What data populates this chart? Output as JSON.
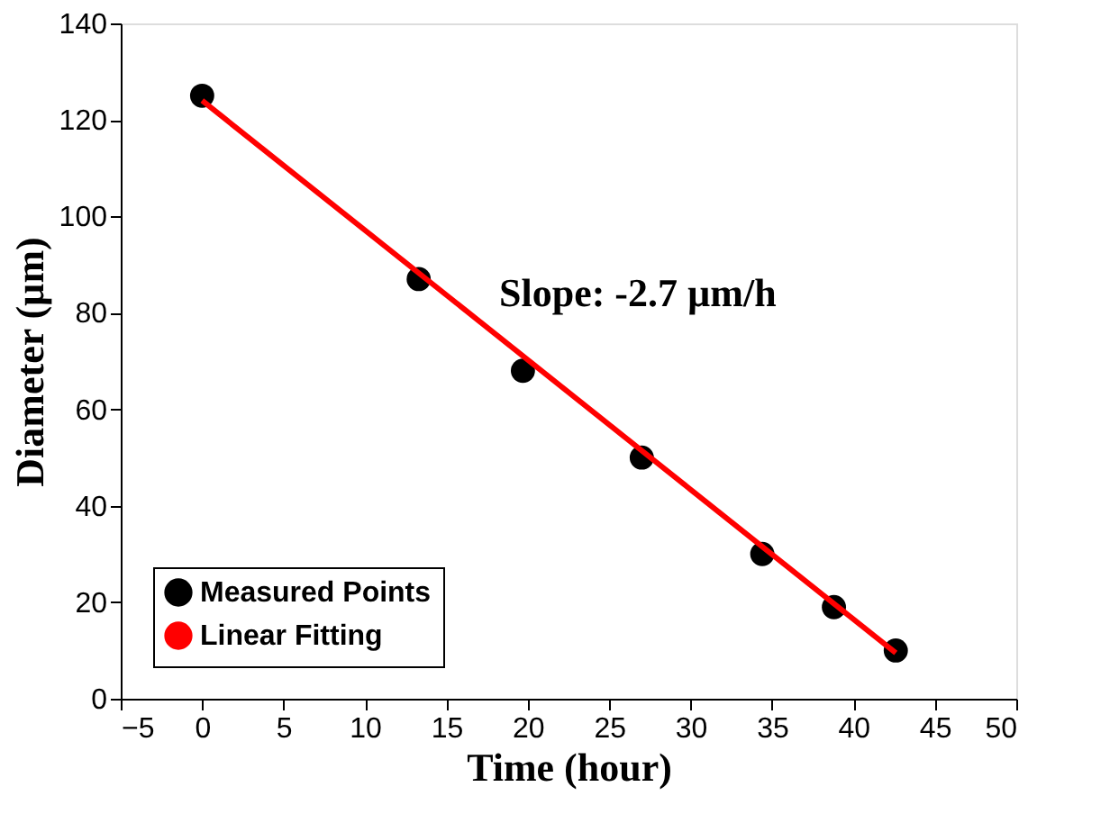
{
  "chart_data": {
    "type": "scatter",
    "xlabel": "Time (hour)",
    "ylabel": "Diameter (µm)",
    "annotations": [
      "Slope: -2.7 µm/h"
    ],
    "series": [
      {
        "name": "Measured Points",
        "marker": "circle",
        "color": "#000000",
        "x": [
          0,
          13.3,
          19.7,
          27.0,
          34.4,
          38.8,
          42.6
        ],
        "values": [
          125,
          87,
          68,
          50,
          30,
          19,
          10
        ]
      },
      {
        "name": "Linear Fitting",
        "type": "line",
        "line_style": "solid",
        "color": "#ff0000",
        "x": [
          0,
          42.6
        ],
        "values": [
          124,
          9.5
        ]
      }
    ],
    "legend": "bottom left",
    "grid": false,
    "xlim": [
      -5,
      50
    ],
    "xticks": [
      -5,
      0,
      5,
      10,
      15,
      20,
      25,
      30,
      35,
      40,
      45,
      50
    ],
    "ylim": [
      0,
      140
    ],
    "yticks": [
      0,
      20,
      40,
      60,
      80,
      100,
      120,
      140
    ]
  }
}
